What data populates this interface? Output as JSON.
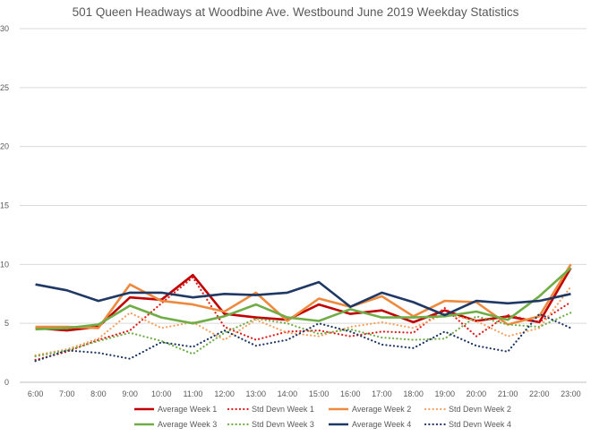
{
  "chart_data": {
    "type": "line",
    "title": "501 Queen Headways at Woodbine Ave. Westbound June 2019 Weekday Statistics",
    "xlabel": "",
    "ylabel": "",
    "ylim": [
      0,
      30
    ],
    "yticks": [
      "0",
      "5",
      "10",
      "15",
      "20",
      "25",
      "30"
    ],
    "grid": true,
    "legend_position": "bottom",
    "categories": [
      "6:00",
      "7:00",
      "8:00",
      "9:00",
      "10:00",
      "11:00",
      "12:00",
      "13:00",
      "14:00",
      "15:00",
      "16:00",
      "17:00",
      "18:00",
      "19:00",
      "20:00",
      "21:00",
      "22:00",
      "23:00"
    ],
    "series": [
      {
        "name": "Average Week 1",
        "color": "#c00000",
        "dash": "solid",
        "values": [
          4.6,
          4.4,
          4.7,
          7.2,
          7.0,
          9.1,
          5.8,
          5.5,
          5.3,
          6.6,
          5.8,
          6.1,
          5.1,
          6.1,
          5.2,
          5.6,
          5.1,
          9.7
        ]
      },
      {
        "name": "Std Devn Week 1",
        "color": "#e21b1b",
        "dash": "dotted",
        "values": [
          1.9,
          2.6,
          3.6,
          4.4,
          6.7,
          8.9,
          4.7,
          3.6,
          4.3,
          4.4,
          3.9,
          4.3,
          4.2,
          6.3,
          3.9,
          5.7,
          5.1,
          6.8
        ]
      },
      {
        "name": "Average Week 2",
        "color": "#ed8a3f",
        "dash": "solid",
        "values": [
          4.7,
          4.7,
          4.6,
          8.3,
          6.9,
          6.6,
          6.0,
          7.6,
          5.2,
          7.1,
          6.4,
          7.3,
          5.6,
          6.9,
          6.8,
          4.9,
          5.6,
          10.0
        ]
      },
      {
        "name": "Std Devn Week 2",
        "color": "#f4a160",
        "dash": "dotted",
        "values": [
          2.3,
          2.8,
          3.7,
          5.9,
          4.6,
          5.1,
          3.6,
          5.3,
          4.2,
          3.9,
          4.7,
          5.1,
          4.6,
          5.8,
          5.2,
          3.9,
          4.6,
          8.1
        ]
      },
      {
        "name": "Average Week 3",
        "color": "#70ad47",
        "dash": "solid",
        "values": [
          4.5,
          4.6,
          4.9,
          6.5,
          5.5,
          5.0,
          5.6,
          6.6,
          5.5,
          5.2,
          6.2,
          5.5,
          5.5,
          5.6,
          6.0,
          5.3,
          7.3,
          9.7
        ]
      },
      {
        "name": "Std Devn Week 3",
        "color": "#70ad47",
        "dash": "dotted",
        "values": [
          2.2,
          2.7,
          3.5,
          4.2,
          3.5,
          2.4,
          4.2,
          5.4,
          5.0,
          4.1,
          4.5,
          3.8,
          3.6,
          3.7,
          5.6,
          4.9,
          4.7,
          5.9
        ]
      },
      {
        "name": "Average Week 4",
        "color": "#1f3864",
        "dash": "solid",
        "values": [
          8.3,
          7.8,
          6.9,
          7.6,
          7.6,
          7.2,
          7.5,
          7.4,
          7.6,
          8.5,
          6.4,
          7.6,
          6.8,
          5.7,
          6.9,
          6.7,
          6.9,
          7.5
        ]
      },
      {
        "name": "Std Devn Week 4",
        "color": "#1f3864",
        "dash": "dotted",
        "values": [
          1.8,
          2.7,
          2.5,
          2.0,
          3.4,
          3.0,
          4.4,
          3.1,
          3.6,
          5.0,
          4.3,
          3.2,
          2.9,
          4.3,
          3.1,
          2.6,
          5.8,
          4.6
        ]
      }
    ]
  }
}
